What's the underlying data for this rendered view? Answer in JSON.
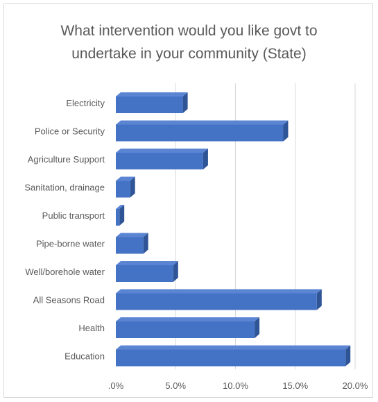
{
  "chart_data": {
    "type": "bar",
    "orientation": "horizontal",
    "style": "3d",
    "title_line1": "What intervention would you like govt to",
    "title_line2": "undertake in your community (State)",
    "categories": [
      "Electricity",
      "Police or Security",
      "Agriculture Support",
      "Sanitation, drainage",
      "Public transport",
      "Pipe-borne water",
      "Well/borehole water",
      "All Seasons Road",
      "Health",
      "Education"
    ],
    "values": [
      5.6,
      14.0,
      7.3,
      1.2,
      0.3,
      2.3,
      4.8,
      16.8,
      11.6,
      19.2
    ],
    "xlim": [
      0,
      20
    ],
    "xticks": [
      0,
      5,
      10,
      15,
      20
    ],
    "xtick_labels": [
      ".0%",
      "5.0%",
      "10.0%",
      "15.0%",
      "20.0%"
    ],
    "grid": true,
    "legend": "none",
    "colors": {
      "bar_front": "#4472c4",
      "bar_top": "#5b85d3",
      "bar_side": "#2f5597",
      "grid": "#d9d9d9",
      "text": "#595959"
    }
  }
}
